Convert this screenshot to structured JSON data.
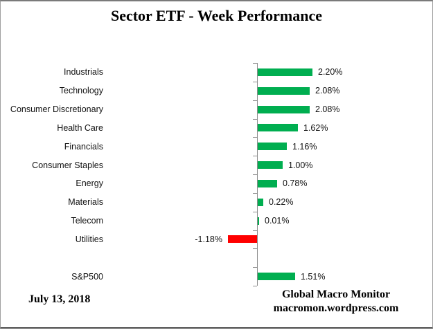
{
  "title": "Sector ETF - Week Performance",
  "footer": {
    "date": "July 13, 2018",
    "attribution_line1": "Global Macro Monitor",
    "attribution_line2": "macromon.wordpress.com"
  },
  "colors": {
    "positive_bar": "#00AE50",
    "negative_bar": "#FF0000",
    "axis": "#8C8C8C"
  },
  "chart_data": {
    "type": "bar",
    "orientation": "horizontal",
    "title": "Sector ETF - Week Performance",
    "xlabel": "",
    "ylabel": "",
    "grid": false,
    "legend": false,
    "baseline": 0,
    "categories": [
      "Industrials",
      "Technology",
      "Consumer Discretionary",
      "Health Care",
      "Financials",
      "Consumer Staples",
      "Energy",
      "Materials",
      "Telecom",
      "Utilities",
      "",
      "S&P500"
    ],
    "values": [
      2.2,
      2.08,
      2.08,
      1.62,
      1.16,
      1.0,
      0.78,
      0.22,
      0.01,
      -1.18,
      null,
      1.51
    ],
    "labels": [
      "2.20%",
      "2.08%",
      "2.08%",
      "1.62%",
      "1.16%",
      "1.00%",
      "0.78%",
      "0.22%",
      "0.01%",
      "-1.18%",
      "",
      "1.51%"
    ]
  }
}
